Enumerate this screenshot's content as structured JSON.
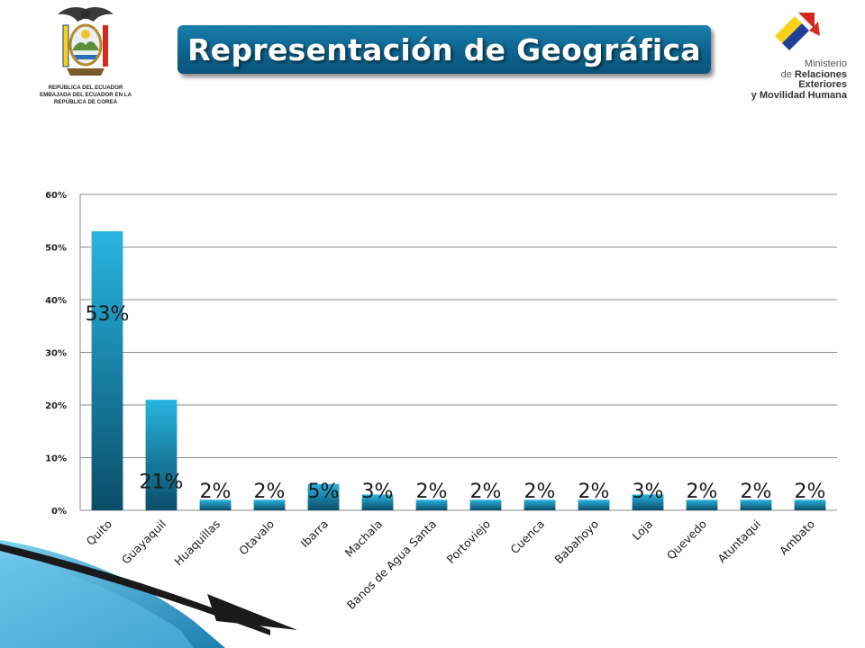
{
  "header": {
    "title": "Representación de Geográfica",
    "emblem_lines": [
      "REPÚBLICA DEL ECUADOR",
      "EMBAJADA DEL ECUADOR EN LA",
      "REPÚBLICA DE COREA"
    ],
    "ministry": {
      "line1": "Ministerio",
      "line2_prefix": "de ",
      "line2_bold": "Relaciones Exteriores",
      "line3": "y Movilidad Humana"
    }
  },
  "colors": {
    "title_bg": "#0e6893",
    "bar_top": "#29b5e0",
    "bar_bottom": "#0a4d69",
    "grid": "#888888",
    "flag_yellow": "#f7d117",
    "flag_blue": "#1f3f99",
    "flag_red": "#d52b1e"
  },
  "icons": {
    "emblem": "coat-of-arms-icon",
    "ministry": "ministry-logo-icon"
  },
  "chart_data": {
    "type": "bar",
    "categories": [
      "Quito",
      "Guayaquil",
      "Huaquillas",
      "Otavalo",
      "Ibarra",
      "Machala",
      "Banos de Agua Santa",
      "Portoviejo",
      "Cuenca",
      "Babahoyo",
      "Loja",
      "Quevedo",
      "Atuntaqui",
      "Ambato"
    ],
    "values": [
      53,
      21,
      2,
      2,
      5,
      3,
      2,
      2,
      2,
      2,
      3,
      2,
      2,
      2
    ],
    "data_labels": [
      "53%",
      "21%",
      "2%",
      "2%",
      "5%",
      "3%",
      "2%",
      "2%",
      "2%",
      "2%",
      "3%",
      "2%",
      "2%",
      "2%"
    ],
    "ylim": [
      0,
      60
    ],
    "yticks": [
      0,
      10,
      20,
      30,
      40,
      50,
      60
    ],
    "ytick_labels": [
      "0%",
      "10%",
      "20%",
      "30%",
      "40%",
      "50%",
      "60%"
    ],
    "xlabel": "",
    "ylabel": "",
    "grid": true,
    "legend": "none"
  }
}
